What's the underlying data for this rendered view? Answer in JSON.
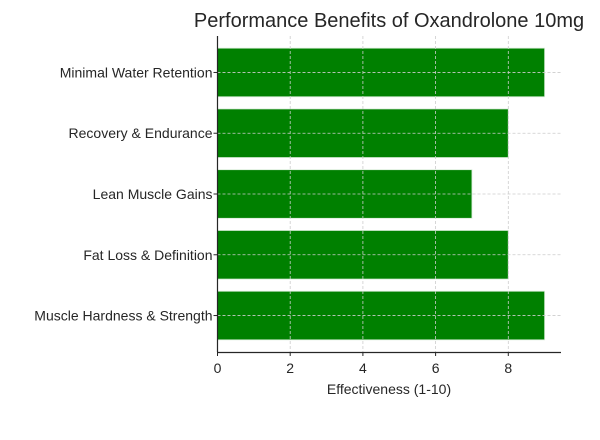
{
  "chart_data": {
    "type": "bar",
    "orientation": "horizontal",
    "title": "Performance Benefits of Oxandrolone 10mg",
    "xlabel": "Effectiveness (1-10)",
    "ylabel": "",
    "categories": [
      "Muscle Hardness & Strength",
      "Fat Loss & Definition",
      "Lean Muscle Gains",
      "Recovery & Endurance",
      "Minimal Water Retention"
    ],
    "values": [
      9,
      8,
      7,
      8,
      9
    ],
    "xlim": [
      0,
      9.45
    ],
    "xticks": [
      "0",
      "2",
      "4",
      "6",
      "8"
    ],
    "grid": true,
    "grid_style": "dashed",
    "legend": "none",
    "bar_color": "#008000"
  }
}
